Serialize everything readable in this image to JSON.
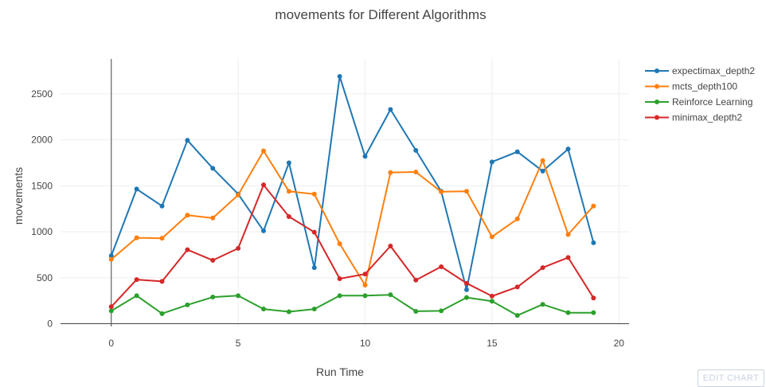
{
  "chart_data": {
    "type": "line",
    "title": "movements for Different Algorithms",
    "xlabel": "Run Time",
    "ylabel": "movements",
    "x": [
      0,
      1,
      2,
      3,
      4,
      5,
      6,
      7,
      8,
      9,
      10,
      11,
      12,
      13,
      14,
      15,
      16,
      17,
      18,
      19
    ],
    "xlim": [
      -2,
      20.4
    ],
    "ylim": [
      -30,
      2880
    ],
    "xticks": [
      0,
      5,
      10,
      15,
      20
    ],
    "yticks": [
      0,
      500,
      1000,
      1500,
      2000,
      2500
    ],
    "grid": true,
    "legend_position": "top-right",
    "series": [
      {
        "name": "expectimax_depth2",
        "color": "#1f77b4",
        "values": [
          740,
          1465,
          1280,
          1995,
          1690,
          1410,
          1010,
          1750,
          610,
          2690,
          1820,
          2330,
          1885,
          1440,
          370,
          1760,
          1870,
          1660,
          1900,
          880
        ]
      },
      {
        "name": "mcts_depth100",
        "color": "#ff7f0e",
        "values": [
          700,
          935,
          930,
          1180,
          1150,
          1400,
          1880,
          1440,
          1410,
          870,
          420,
          1645,
          1650,
          1435,
          1440,
          945,
          1140,
          1775,
          970,
          1280
        ]
      },
      {
        "name": "Reinforce Learning",
        "color": "#2ca02c",
        "values": [
          140,
          305,
          110,
          205,
          290,
          305,
          160,
          130,
          160,
          305,
          305,
          315,
          135,
          140,
          285,
          245,
          90,
          210,
          120,
          120
        ]
      },
      {
        "name": "minimax_depth2",
        "color": "#d62728",
        "values": [
          185,
          480,
          460,
          805,
          690,
          820,
          1510,
          1165,
          995,
          490,
          540,
          845,
          475,
          620,
          440,
          300,
          400,
          610,
          720,
          280
        ]
      }
    ]
  },
  "ui": {
    "edit_chart_label": "EDIT CHART"
  }
}
